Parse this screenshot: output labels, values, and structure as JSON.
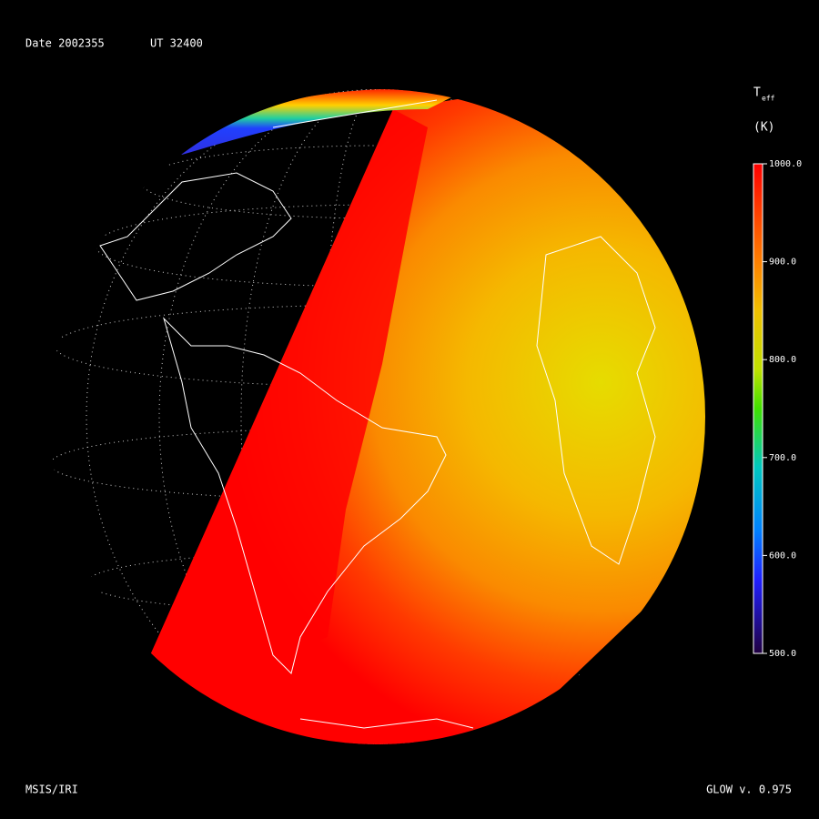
{
  "header": {
    "date": "Date 2002355",
    "ut": "UT 32400"
  },
  "colorbar": {
    "symbol": "T",
    "subscript": "eff",
    "unit": "(K)",
    "range": [
      500,
      1000
    ],
    "ticks": [
      {
        "value": 1000,
        "label": "1000.0"
      },
      {
        "value": 900,
        "label": "900.0"
      },
      {
        "value": 800,
        "label": "800.0"
      },
      {
        "value": 700,
        "label": "700.0"
      },
      {
        "value": 600,
        "label": "600.0"
      },
      {
        "value": 500,
        "label": "500.0"
      }
    ]
  },
  "footer": {
    "left": "MSIS/IRI",
    "right": "GLOW v. 0.975"
  }
}
